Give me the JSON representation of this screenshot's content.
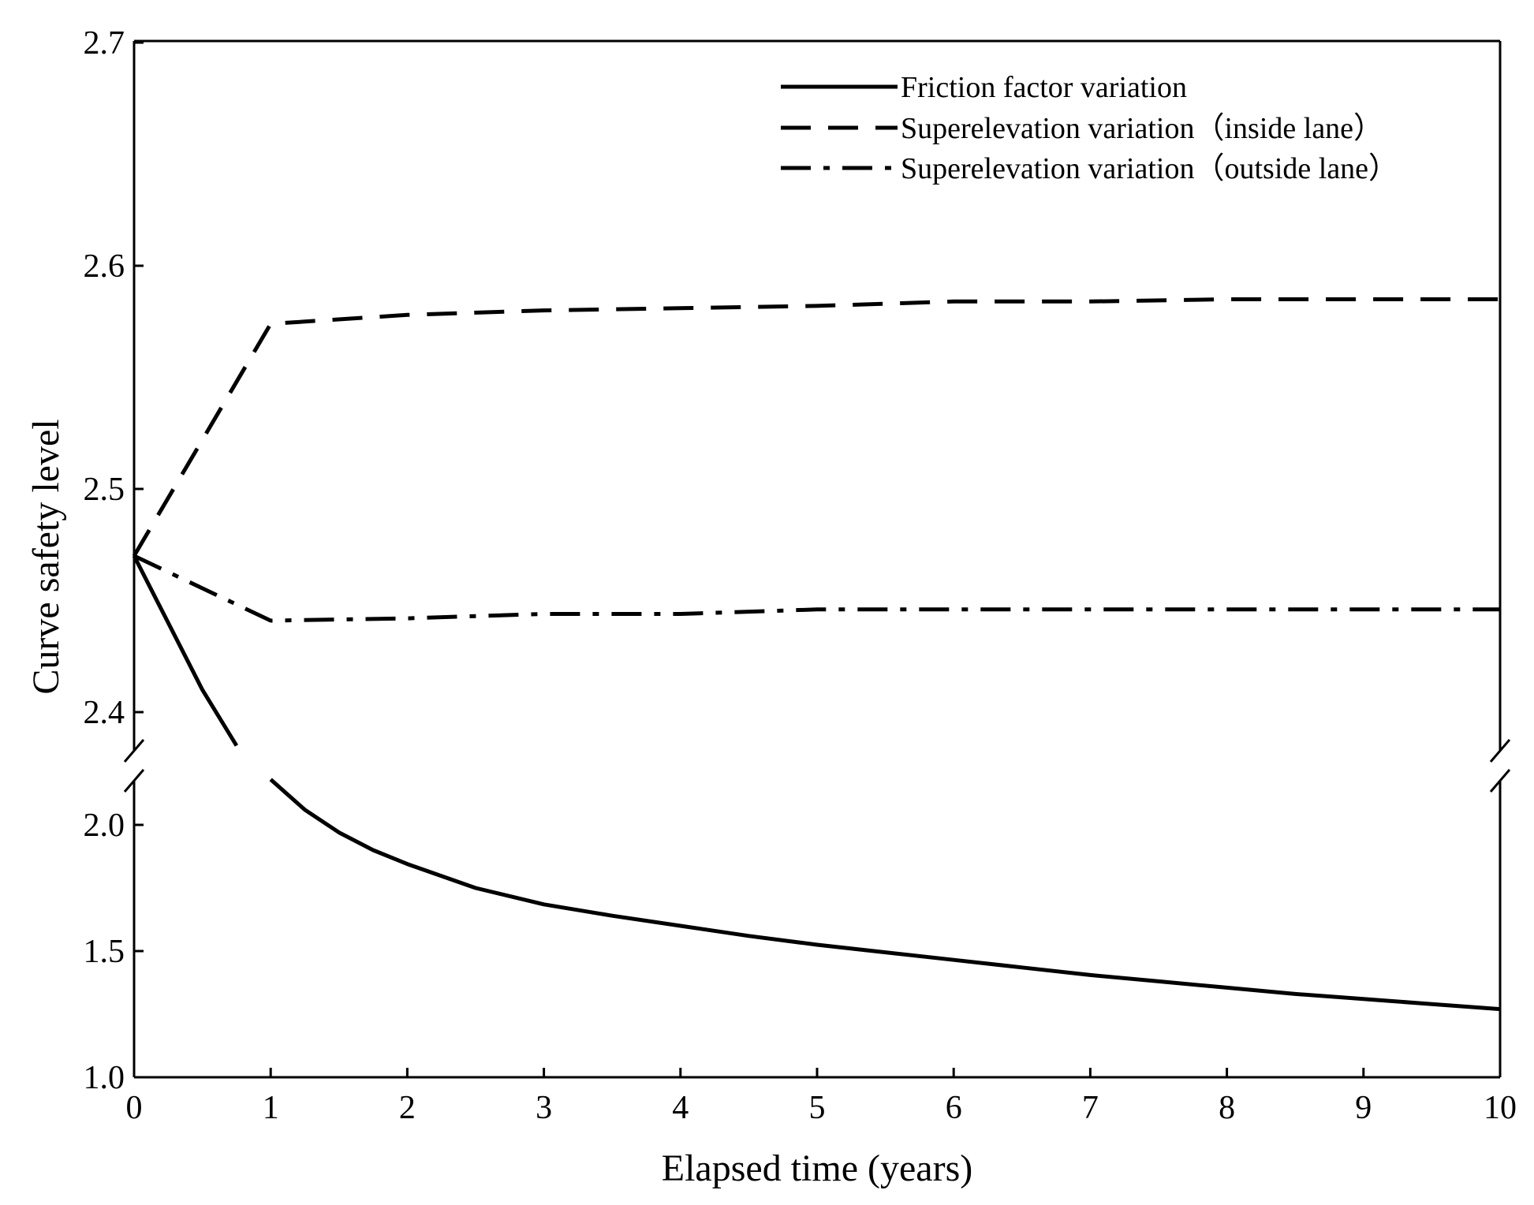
{
  "chart_data": {
    "type": "line",
    "title": "",
    "xlabel": "Elapsed time (years)",
    "ylabel": "Curve safety level",
    "xlim": [
      0,
      10
    ],
    "x_ticks": [
      "0",
      "1",
      "2",
      "3",
      "4",
      "5",
      "6",
      "7",
      "8",
      "9",
      "10"
    ],
    "y_axis_break": true,
    "upper_ylim": [
      2.37,
      2.7
    ],
    "lower_ylim": [
      1.0,
      2.2
    ],
    "y_ticks_upper": [
      "2.4",
      "2.5",
      "2.6",
      "2.7"
    ],
    "y_ticks_lower": [
      "1.0",
      "1.5",
      "2.0"
    ],
    "legend_position": "top-right",
    "series": [
      {
        "name": "Friction factor variation",
        "style": "solid",
        "x": [
          0,
          0.25,
          0.5,
          0.75,
          1.0,
          1.25,
          1.5,
          1.75,
          2,
          2.5,
          3,
          3.5,
          4,
          4.5,
          5,
          5.5,
          6,
          6.5,
          7,
          7.5,
          8,
          8.5,
          9,
          9.5,
          10
        ],
        "values": [
          2.47,
          2.44,
          2.41,
          2.385,
          2.18,
          2.06,
          1.97,
          1.9,
          1.845,
          1.75,
          1.685,
          1.64,
          1.6,
          1.56,
          1.525,
          1.495,
          1.465,
          1.435,
          1.405,
          1.38,
          1.355,
          1.33,
          1.31,
          1.29,
          1.27
        ]
      },
      {
        "name": "Superelevation variation（inside lane）",
        "style": "dashed",
        "x": [
          0,
          1,
          2,
          3,
          4,
          5,
          6,
          7,
          8,
          9,
          10
        ],
        "values": [
          2.47,
          2.574,
          2.578,
          2.58,
          2.581,
          2.582,
          2.584,
          2.584,
          2.585,
          2.585,
          2.585
        ]
      },
      {
        "name": "Superelevation variation（outside lane）",
        "style": "dashdot",
        "x": [
          0,
          1,
          2,
          3,
          4,
          5,
          6,
          7,
          8,
          9,
          10
        ],
        "values": [
          2.47,
          2.441,
          2.442,
          2.444,
          2.444,
          2.446,
          2.446,
          2.446,
          2.446,
          2.446,
          2.446
        ]
      }
    ]
  }
}
